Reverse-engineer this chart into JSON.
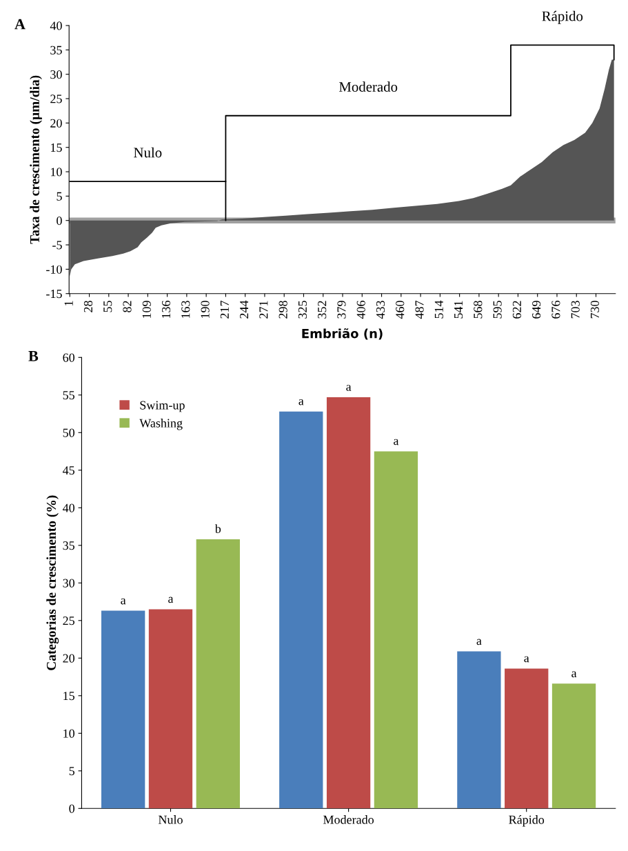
{
  "chart_data": [
    {
      "type": "area",
      "xlabel": "Embrião (n)",
      "ylabel": "Taxa de crescimento (µm/dia)",
      "annotations": [
        "A",
        "Nulo",
        "Moderado",
        "Rápido"
      ],
      "xlim": [
        0,
        757
      ],
      "xticks": [
        1,
        28,
        55,
        82,
        109,
        136,
        163,
        190,
        217,
        244,
        271,
        298,
        325,
        352,
        379,
        406,
        433,
        460,
        487,
        514,
        541,
        568,
        595,
        622,
        649,
        676,
        703,
        730
      ],
      "ylim": [
        -15,
        40
      ],
      "yticks": [
        -15,
        -10,
        -5,
        0,
        5,
        10,
        15,
        20,
        25,
        30,
        35,
        40
      ],
      "ref_lines": [
        {
          "axis": "y",
          "value": 0,
          "color": "#a0a0a0"
        }
      ],
      "series": [
        {
          "type": "area",
          "color": "#555555",
          "x": [
            1,
            3,
            8,
            20,
            40,
            60,
            75,
            85,
            95,
            100,
            108,
            115,
            120,
            128,
            140,
            160,
            180,
            205,
            212,
            240,
            270,
            300,
            330,
            360,
            390,
            420,
            450,
            480,
            510,
            540,
            560,
            580,
            600,
            612,
            625,
            640,
            655,
            670,
            685,
            700,
            715,
            725,
            735,
            742,
            748,
            752,
            755
          ],
          "values": [
            -11.5,
            -10,
            -9,
            -8.3,
            -7.8,
            -7.3,
            -6.8,
            -6.3,
            -5.5,
            -4.5,
            -3.5,
            -2.5,
            -1.5,
            -1,
            -0.6,
            -0.3,
            -0.2,
            -0.1,
            0.2,
            0.4,
            0.7,
            1,
            1.3,
            1.6,
            1.9,
            2.2,
            2.6,
            3,
            3.4,
            4,
            4.6,
            5.5,
            6.5,
            7.2,
            9,
            10.5,
            12,
            14,
            15.5,
            16.5,
            18,
            20,
            23,
            27,
            31,
            33,
            33
          ]
        },
        {
          "type": "line",
          "color": "#000000",
          "x": [
            1,
            217
          ],
          "values": [
            8,
            8
          ]
        },
        {
          "type": "line",
          "color": "#000000",
          "x": [
            217,
            217,
            612,
            612,
            755,
            755
          ],
          "values": [
            0,
            21.5,
            21.5,
            36,
            36,
            33
          ]
        }
      ]
    },
    {
      "type": "bar",
      "ylabel": "Categorias de crescimento (%)",
      "annotations": [
        "B"
      ],
      "categories": [
        "Nulo",
        "Moderado",
        "Rápido"
      ],
      "ylim": [
        0,
        60
      ],
      "yticks": [
        0,
        5,
        10,
        15,
        20,
        25,
        30,
        35,
        40,
        45,
        50,
        55,
        60
      ],
      "legend": "top left",
      "series": [
        {
          "color": "#4a7ebb",
          "values": [
            26.3,
            52.8,
            20.9
          ],
          "value_labels": [
            "a",
            "a",
            "a"
          ]
        },
        {
          "name": "Swim-up",
          "color": "#be4b48",
          "values": [
            26.5,
            54.7,
            18.6
          ],
          "value_labels": [
            "a",
            "a",
            "a"
          ]
        },
        {
          "name": "Washing",
          "color": "#98b954",
          "values": [
            35.8,
            47.5,
            16.6
          ],
          "value_labels": [
            "b",
            "a",
            "a"
          ]
        }
      ]
    }
  ]
}
